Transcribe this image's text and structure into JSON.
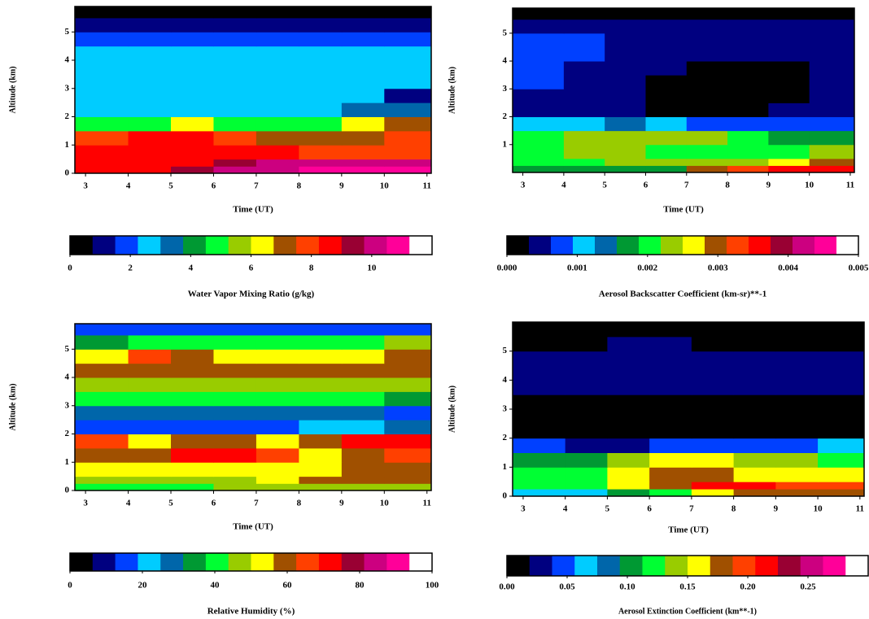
{
  "colorscale": [
    "#000000",
    "#000080",
    "#0040ff",
    "#00ccff",
    "#0066aa",
    "#009933",
    "#00ff33",
    "#99cc00",
    "#ffff00",
    "#a05000",
    "#ff4000",
    "#ff0000",
    "#990033",
    "#cc0080",
    "#ff0099",
    "#ffffff"
  ],
  "chart_data": [
    {
      "type": "heatmap",
      "xlabel": "Time (UT)",
      "ylabel": "Altitude (km)",
      "xlim": [
        2.75,
        11.1
      ],
      "xticks": [
        3,
        4,
        5,
        6,
        7,
        8,
        9,
        10,
        11
      ],
      "ylim": [
        0,
        5.9
      ],
      "yticks": [
        0,
        1,
        2,
        3,
        4,
        5
      ],
      "x_edges": [
        2.75,
        4,
        5,
        6,
        7,
        8,
        9,
        10,
        11.1
      ],
      "y_edges": [
        0,
        0.25,
        0.5,
        1,
        1.5,
        2,
        2.5,
        3,
        3.5,
        4,
        4.5,
        5,
        5.5,
        5.9
      ],
      "z": [
        [
          8.6,
          8.6,
          9.3,
          9.8,
          10.2,
          10.5,
          10.8,
          10.8
        ],
        [
          8.6,
          8.6,
          8.6,
          9.3,
          9.8,
          9.8,
          10.2,
          9.8
        ],
        [
          8.6,
          8.6,
          8.6,
          8.6,
          8.3,
          8,
          7.9,
          7.9
        ],
        [
          8,
          8.6,
          8.6,
          8,
          7.3,
          7.2,
          7.2,
          8
        ],
        [
          5.2,
          5.2,
          6,
          5.2,
          5.2,
          5.2,
          6,
          7.3
        ],
        [
          2.5,
          2.3,
          2.3,
          2.3,
          2.3,
          2.5,
          3,
          3.5
        ],
        [
          2.5,
          2.6,
          2.6,
          2.6,
          2.6,
          2.6,
          2.3,
          1.2
        ],
        [
          2.6,
          2.6,
          2.6,
          2.6,
          2.6,
          2.6,
          2.6,
          2.6
        ],
        [
          2.6,
          2.6,
          2.6,
          2.6,
          2.6,
          2.6,
          2.6,
          2.6
        ],
        [
          2.6,
          2.6,
          2.6,
          2.6,
          2.6,
          2.6,
          2.6,
          2.6
        ],
        [
          1.8,
          1.8,
          1.8,
          1.8,
          1.8,
          1.8,
          1.8,
          1.8
        ],
        [
          1,
          1,
          1,
          1,
          1,
          1,
          1,
          1
        ],
        [
          0.3,
          0.3,
          0.3,
          0.3,
          0.3,
          0.3,
          0.3,
          0.3
        ]
      ],
      "colorbar_title": "Water Vapor Mixing Ratio (g/kg)",
      "colorbar_lim": [
        0,
        12
      ],
      "colorbar_ticks": [
        0,
        2,
        4,
        6,
        8,
        10
      ]
    },
    {
      "type": "heatmap",
      "xlabel": "Time (UT)",
      "ylabel": "Altitude (km)",
      "xlim": [
        2.75,
        11.1
      ],
      "xticks": [
        3,
        4,
        5,
        6,
        7,
        8,
        9,
        10,
        11
      ],
      "ylim": [
        0,
        5.9
      ],
      "yticks": [
        1,
        2,
        3,
        4,
        5
      ],
      "x_edges": [
        2.75,
        4,
        5,
        6,
        7,
        8,
        9,
        10,
        11.1
      ],
      "y_edges": [
        0,
        0.25,
        0.5,
        1,
        1.5,
        2,
        2.5,
        3,
        3.5,
        4,
        4.5,
        5,
        5.5,
        5.9
      ],
      "z": [
        [
          0.0017,
          0.0017,
          0.0017,
          0.0017,
          0.0029,
          0.0032,
          0.0035,
          0.0036
        ],
        [
          0.002,
          0.002,
          0.0022,
          0.0022,
          0.0022,
          0.0024,
          0.0026,
          0.0029
        ],
        [
          0.002,
          0.0022,
          0.0022,
          0.002,
          0.002,
          0.002,
          0.002,
          0.0022
        ],
        [
          0.002,
          0.0024,
          0.0024,
          0.0024,
          0.0022,
          0.002,
          0.0017,
          0.0017
        ],
        [
          0.0011,
          0.0011,
          0.0014,
          0.0011,
          0.0008,
          0.0008,
          0.0008,
          0.0008
        ],
        [
          0.0005,
          0.0004,
          0.0004,
          0.0002,
          0.0002,
          0.0002,
          0.0004,
          0.0005
        ],
        [
          0.0005,
          0.0004,
          0.0004,
          0.0002,
          0.0002,
          0.0002,
          0.0002,
          0.0004
        ],
        [
          0.0007,
          0.0005,
          0.0004,
          0.0002,
          0.0002,
          0.0002,
          0.0002,
          0.0004
        ],
        [
          0.0008,
          0.0005,
          0.0004,
          0.0004,
          0.0002,
          0.0002,
          0.0002,
          0.0004
        ],
        [
          0.0008,
          0.0008,
          0.0005,
          0.0005,
          0.0005,
          0.0005,
          0.0005,
          0.0005
        ],
        [
          0.0008,
          0.0007,
          0.0005,
          0.0005,
          0.0005,
          0.0005,
          0.0005,
          0.0005
        ],
        [
          0.0005,
          0.0005,
          0.0005,
          0.0005,
          0.0005,
          0.0005,
          0.0005,
          0.0005
        ],
        [
          0.0001,
          0.0001,
          0.0001,
          0.0001,
          0.0001,
          0.0001,
          0.0001,
          0.0001
        ]
      ],
      "colorbar_title": "Aerosol Backscatter Coefficient (km-sr)**-1",
      "colorbar_lim": [
        0,
        0.005
      ],
      "colorbar_ticks": [
        {
          "value": 0,
          "label": "0.000"
        },
        {
          "value": 0.001,
          "label": "0.001"
        },
        {
          "value": 0.002,
          "label": "0.002"
        },
        {
          "value": 0.003,
          "label": "0.003"
        },
        {
          "value": 0.004,
          "label": "0.004"
        },
        {
          "value": 0.005,
          "label": "0.005"
        }
      ]
    },
    {
      "type": "heatmap",
      "xlabel": "Time (UT)",
      "ylabel": "Altitude (km)",
      "xlim": [
        2.75,
        11.1
      ],
      "xticks": [
        3,
        4,
        5,
        6,
        7,
        8,
        9,
        10,
        11
      ],
      "ylim": [
        0,
        5.9
      ],
      "yticks": [
        0,
        1,
        2,
        3,
        4,
        5
      ],
      "x_edges": [
        2.75,
        4,
        5,
        6,
        7,
        8,
        9,
        10,
        11.1
      ],
      "y_edges": [
        0,
        0.25,
        0.5,
        1,
        1.5,
        2,
        2.5,
        3,
        3.5,
        4,
        4.5,
        5,
        5.5,
        5.9
      ],
      "z": [
        [
          40,
          40,
          40,
          45,
          45,
          45,
          45,
          45
        ],
        [
          47,
          47,
          47,
          47,
          52,
          58,
          58,
          58
        ],
        [
          52,
          52,
          52,
          52,
          52,
          53,
          58,
          58
        ],
        [
          58,
          60,
          72,
          72,
          65,
          55,
          60,
          65
        ],
        [
          65,
          53,
          58,
          58,
          52,
          58,
          70,
          72
        ],
        [
          15,
          15,
          15,
          15,
          15,
          20,
          22,
          28
        ],
        [
          28,
          28,
          28,
          28,
          28,
          28,
          28,
          15
        ],
        [
          40,
          40,
          40,
          40,
          40,
          40,
          40,
          33
        ],
        [
          47,
          47,
          47,
          47,
          47,
          47,
          47,
          47
        ],
        [
          60,
          60,
          60,
          60,
          60,
          60,
          60,
          60
        ],
        [
          53,
          65,
          60,
          53,
          53,
          53,
          53,
          60
        ],
        [
          34,
          40,
          40,
          40,
          40,
          40,
          40,
          45
        ],
        [
          15,
          15,
          18,
          18,
          18,
          18,
          18,
          18
        ]
      ],
      "colorbar_title": "Relative Humidity (%)",
      "colorbar_lim": [
        0,
        100
      ],
      "colorbar_ticks": [
        0,
        20,
        40,
        60,
        80,
        100
      ]
    },
    {
      "type": "heatmap",
      "xlabel": "Time (UT)",
      "ylabel": "Altitude (km)",
      "xlim": [
        2.75,
        11.1
      ],
      "xticks": [
        3,
        4,
        5,
        6,
        7,
        8,
        9,
        10,
        11
      ],
      "ylim": [
        0,
        6
      ],
      "yticks": [
        0,
        1,
        2,
        3,
        4,
        5
      ],
      "x_edges": [
        2.75,
        4,
        5,
        6,
        7,
        8,
        9,
        10,
        11.1
      ],
      "y_edges": [
        0,
        0.25,
        0.5,
        1,
        1.5,
        2,
        2.5,
        3,
        3.5,
        4,
        4.5,
        5,
        5.5,
        5.9
      ],
      "z": [
        [
          0.07,
          0.07,
          0.11,
          0.12,
          0.15,
          0.17,
          0.17,
          0.17
        ],
        [
          0.12,
          0.12,
          0.16,
          0.17,
          0.21,
          0.22,
          0.2,
          0.19
        ],
        [
          0.12,
          0.12,
          0.16,
          0.18,
          0.17,
          0.16,
          0.16,
          0.15
        ],
        [
          0.11,
          0.11,
          0.14,
          0.15,
          0.15,
          0.14,
          0.14,
          0.13
        ],
        [
          0.05,
          0.03,
          0.03,
          0.04,
          0.05,
          0.05,
          0.05,
          0.06
        ],
        [
          0.01,
          0.01,
          0.01,
          0.01,
          0.01,
          0.01,
          0.01,
          0.01
        ],
        [
          0.01,
          0.01,
          0.01,
          0.01,
          0.01,
          0.01,
          0.01,
          0.01
        ],
        [
          0.01,
          0.01,
          0.01,
          0.01,
          0.01,
          0.01,
          0.01,
          0.01
        ],
        [
          0.03,
          0.03,
          0.03,
          0.03,
          0.03,
          0.03,
          0.03,
          0.03
        ],
        [
          0.03,
          0.03,
          0.03,
          0.03,
          0.03,
          0.03,
          0.03,
          0.03
        ],
        [
          0.03,
          0.03,
          0.03,
          0.03,
          0.03,
          0.03,
          0.03,
          0.03
        ],
        [
          0.01,
          0.01,
          0.03,
          0.03,
          0.01,
          0.01,
          0.01,
          0.01
        ],
        [
          0.01,
          0.01,
          0.01,
          0.01,
          0.01,
          0.01,
          0.01,
          0.01
        ]
      ],
      "colorbar_title": "Aerosol Extinction Coefficient (km**-1)",
      "colorbar_lim": [
        0,
        0.3
      ],
      "colorbar_ticks": [
        {
          "value": 0,
          "label": "0.00"
        },
        {
          "value": 0.05,
          "label": "0.05"
        },
        {
          "value": 0.1,
          "label": "0.10"
        },
        {
          "value": 0.15,
          "label": "0.15"
        },
        {
          "value": 0.2,
          "label": "0.20"
        },
        {
          "value": 0.25,
          "label": "0.25"
        }
      ]
    }
  ]
}
